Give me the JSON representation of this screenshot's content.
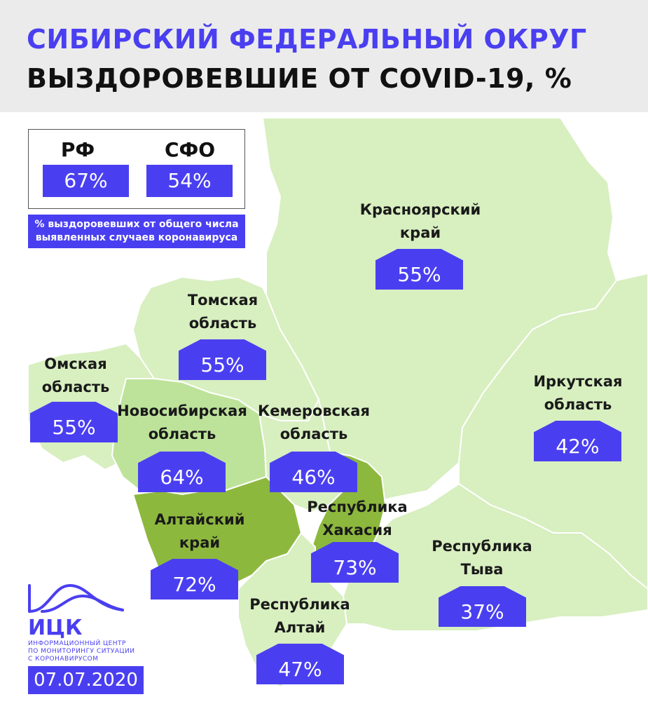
{
  "header": {
    "title_line1": "СИБИРСКИЙ ФЕДЕРАЛЬНЫЙ ОКРУГ",
    "title_line2": "ВЫЗДОРОВЕВШИЕ ОТ COVID-19, %"
  },
  "summary": {
    "rf_label": "РФ",
    "rf_value": "67%",
    "sfo_label": "СФО",
    "sfo_value": "54%",
    "note_line1": "% выздоровевших от общего числа",
    "note_line2": "выявленных случаев коронавируса"
  },
  "regions": [
    {
      "id": "krasnoyarsk",
      "line1": "Красноярский",
      "line2": "край",
      "value": "55%"
    },
    {
      "id": "tomsk",
      "line1": "Томская",
      "line2": "область",
      "value": "55%"
    },
    {
      "id": "omsk",
      "line1": "Омская",
      "line2": "область",
      "value": "55%"
    },
    {
      "id": "novosibirsk",
      "line1": "Новосибирская",
      "line2": "область",
      "value": "64%"
    },
    {
      "id": "kemerovo",
      "line1": "Кемеровская",
      "line2": "область",
      "value": "46%"
    },
    {
      "id": "irkutsk",
      "line1": "Иркутская",
      "line2": "область",
      "value": "42%"
    },
    {
      "id": "altai-krai",
      "line1": "Алтайский",
      "line2": "край",
      "value": "72%"
    },
    {
      "id": "khakassia",
      "line1": "Республика",
      "line2": "Хакасия",
      "value": "73%"
    },
    {
      "id": "tyva",
      "line1": "Республика",
      "line2": "Тыва",
      "value": "37%"
    },
    {
      "id": "altai-rep",
      "line1": "Республика",
      "line2": "Алтай",
      "value": "47%"
    }
  ],
  "colors": {
    "accent": "#4a3ff0",
    "map_light": "#d8efc0",
    "map_medium": "#bde39a",
    "map_dark": "#8db83e",
    "border": "#ffffff"
  },
  "logo": {
    "name": "ИЦК",
    "subtitle_line1": "ИНФОРМАЦИОННЫЙ ЦЕНТР",
    "subtitle_line2": "ПО МОНИТОРИНГУ СИТУАЦИИ",
    "subtitle_line3": "С КОРОНАВИРУСОМ",
    "icon": "wave-arc-logo-icon"
  },
  "date": "07.07.2020"
}
